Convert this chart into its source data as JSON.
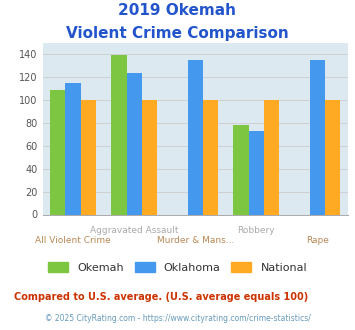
{
  "title_line1": "2019 Okemah",
  "title_line2": "Violent Crime Comparison",
  "categories": [
    "All Violent Crime",
    "Aggravated Assault",
    "Murder & Mans...",
    "Robbery",
    "Rape"
  ],
  "series": {
    "Okemah": [
      109,
      139,
      null,
      78,
      null
    ],
    "Oklahoma": [
      115,
      124,
      135,
      73,
      135
    ],
    "National": [
      100,
      100,
      100,
      100,
      100
    ]
  },
  "colors": {
    "Okemah": "#7dc642",
    "Oklahoma": "#4499ee",
    "National": "#ffaa22"
  },
  "ylim": [
    0,
    150
  ],
  "yticks": [
    0,
    20,
    40,
    60,
    80,
    100,
    120,
    140
  ],
  "grid_color": "#cccccc",
  "bg_color": "#dce9f0",
  "title_color": "#2255cc",
  "xlabel_row1_color": "#aaaaaa",
  "xlabel_row2_color": "#bb8855",
  "legend_labels": [
    "Okemah",
    "Oklahoma",
    "National"
  ],
  "footnote1": "Compared to U.S. average. (U.S. average equals 100)",
  "footnote2": "© 2025 CityRating.com - https://www.cityrating.com/crime-statistics/",
  "footnote1_color": "#cc3300",
  "footnote2_color": "#6699bb"
}
